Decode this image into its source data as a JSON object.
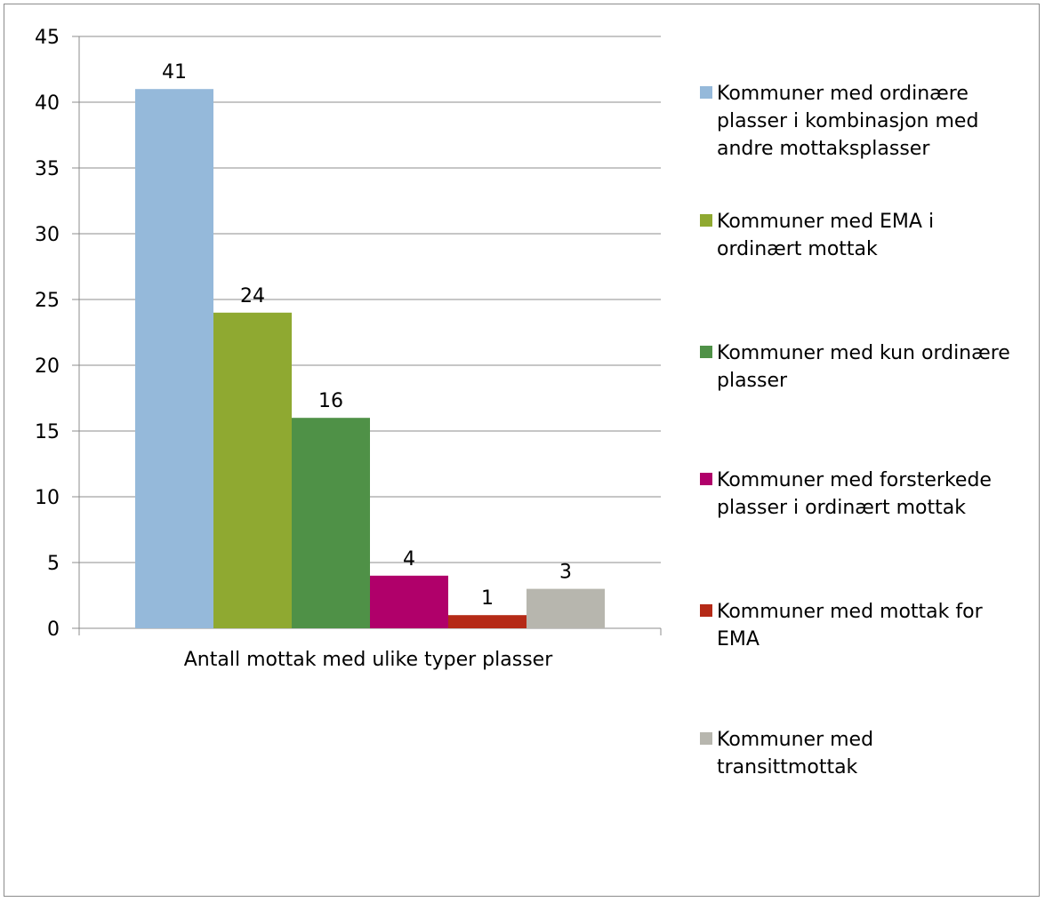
{
  "chart_data": {
    "type": "bar",
    "title": "",
    "xlabel": "",
    "ylabel": "",
    "categories": [
      "Antall mottak med ulike typer plasser"
    ],
    "ylim": [
      0,
      45
    ],
    "yticks": [
      0,
      5,
      10,
      15,
      20,
      25,
      30,
      35,
      40,
      45
    ],
    "grid": true,
    "legend_position": "right",
    "series": [
      {
        "name": "Kommuner med ordinære plasser i kombinasjon med andre mottaksplasser",
        "values": [
          41
        ],
        "color": "#95b9da"
      },
      {
        "name": "Kommuner med EMA i ordinært mottak",
        "values": [
          24
        ],
        "color": "#8fa931"
      },
      {
        "name": "Kommuner med kun ordinære plasser",
        "values": [
          16
        ],
        "color": "#4f9147"
      },
      {
        "name": "Kommuner med forsterkede plasser i ordinært mottak",
        "values": [
          4
        ],
        "color": "#b0006a"
      },
      {
        "name": "Kommuner med mottak for EMA",
        "values": [
          1
        ],
        "color": "#b52a17"
      },
      {
        "name": "Kommuner med transittmottak",
        "values": [
          3
        ],
        "color": "#b7b6ae"
      }
    ]
  }
}
